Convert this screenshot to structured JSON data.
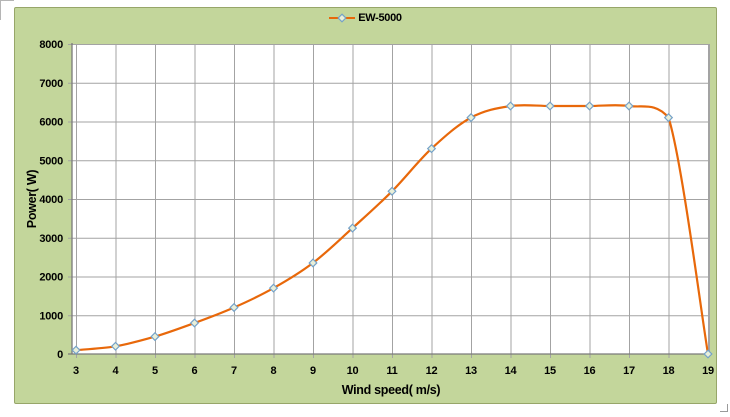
{
  "legend": {
    "label": "EW-5000"
  },
  "colors": {
    "page_bg": "#ffffff",
    "chart_bg": "#c3d69b",
    "chart_border": "#97a669",
    "plot_bg": "#ffffff",
    "grid": "#a3a3a3",
    "axis": "#7a7a7a",
    "line": "#e8680a",
    "marker_fill": "#e9efd8",
    "marker_stroke": "#74a1c8",
    "text": "#000000"
  },
  "chart_data": {
    "type": "line",
    "title": "",
    "xlabel": "Wind speed( m/s)",
    "ylabel": "Power( W)",
    "x": [
      3,
      4,
      5,
      6,
      7,
      8,
      9,
      10,
      11,
      12,
      13,
      14,
      15,
      16,
      17,
      18,
      19
    ],
    "series": [
      {
        "name": "EW-5000",
        "values": [
          100,
          200,
          450,
          800,
          1200,
          1700,
          2350,
          3250,
          4200,
          5300,
          6100,
          6400,
          6400,
          6400,
          6400,
          6100,
          0
        ]
      }
    ],
    "xlim": [
      3,
      19
    ],
    "ylim": [
      0,
      8000
    ],
    "xticks": [
      3,
      4,
      5,
      6,
      7,
      8,
      9,
      10,
      11,
      12,
      13,
      14,
      15,
      16,
      17,
      18,
      19
    ],
    "yticks": [
      0,
      1000,
      2000,
      3000,
      4000,
      5000,
      6000,
      7000,
      8000
    ],
    "grid": true,
    "smooth": true,
    "marker": "diamond",
    "legend_position": "top-center"
  }
}
